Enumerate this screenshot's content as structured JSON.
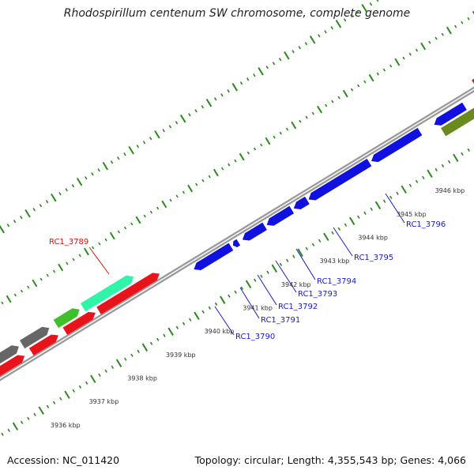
{
  "title": "Rhodospirillum centenum SW chromosome, complete genome",
  "footer": {
    "accession": "Accession: NC_011420",
    "summary": "Topology: circular; Length: 4,355,543 bp; Genes: 4,066"
  },
  "colors": {
    "backbone": "#9a9a9a",
    "tick_green": "#2a8a1a",
    "label_blue": "#1a1acc",
    "label_red": "#dd1111",
    "gene_blue": "#1010e0",
    "gene_red": "#e8141c",
    "gene_mint": "#2ff5a8",
    "gene_green": "#3fbf2a",
    "gene_olive": "#6a8a20",
    "gene_gray": "#666666"
  },
  "scale_labels": [
    "3936 kbp",
    "3937 kbp",
    "3938 kbp",
    "3939 kbp",
    "3940 kbp",
    "3941 kbp",
    "3942 kbp",
    "3943 kbp",
    "3944 kbp",
    "3945 kbp",
    "3946 kbp"
  ],
  "gene_labels": [
    {
      "text": "RC1_3789",
      "color": "red"
    },
    {
      "text": "RC1_3790",
      "color": "blue"
    },
    {
      "text": "RC1_3791",
      "color": "blue"
    },
    {
      "text": "RC1_3792",
      "color": "blue"
    },
    {
      "text": "RC1_3793",
      "color": "blue"
    },
    {
      "text": "RC1_3794",
      "color": "blue"
    },
    {
      "text": "RC1_3795",
      "color": "blue"
    },
    {
      "text": "RC1_3796",
      "color": "blue"
    }
  ]
}
